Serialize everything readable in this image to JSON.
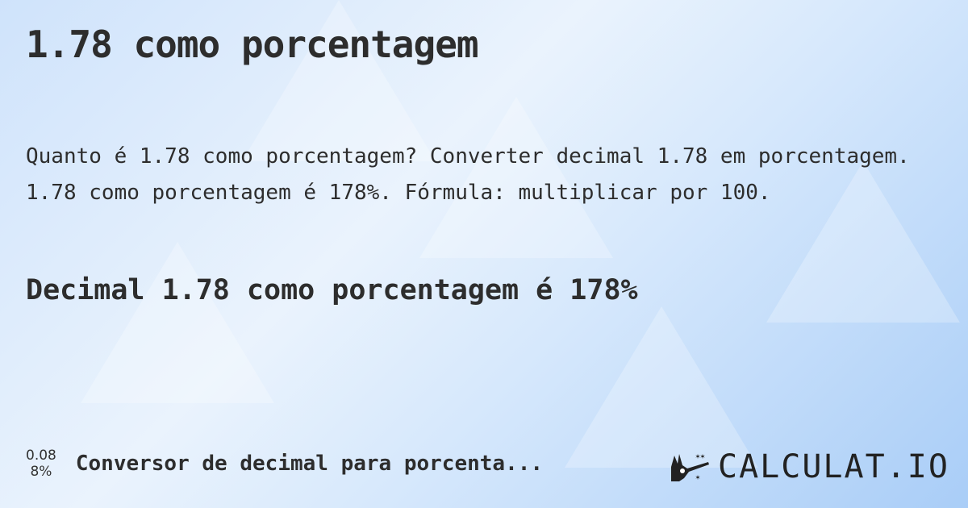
{
  "title": "1.78 como porcentagem",
  "description": "Quanto é 1.78 como porcentagem? Converter decimal 1.78 em porcentagem. 1.78 como porcentagem é 178%. Fórmula: multiplicar por 100.",
  "result": "Decimal 1.78 como porcentagem é 178%",
  "footer": {
    "example_decimal": "0.08",
    "example_percent": "8%",
    "link_label": "Conversor de decimal para porcenta..."
  },
  "logo": {
    "text": "CALCULAT.IO",
    "icon": "magic-hand-wand-icon"
  }
}
